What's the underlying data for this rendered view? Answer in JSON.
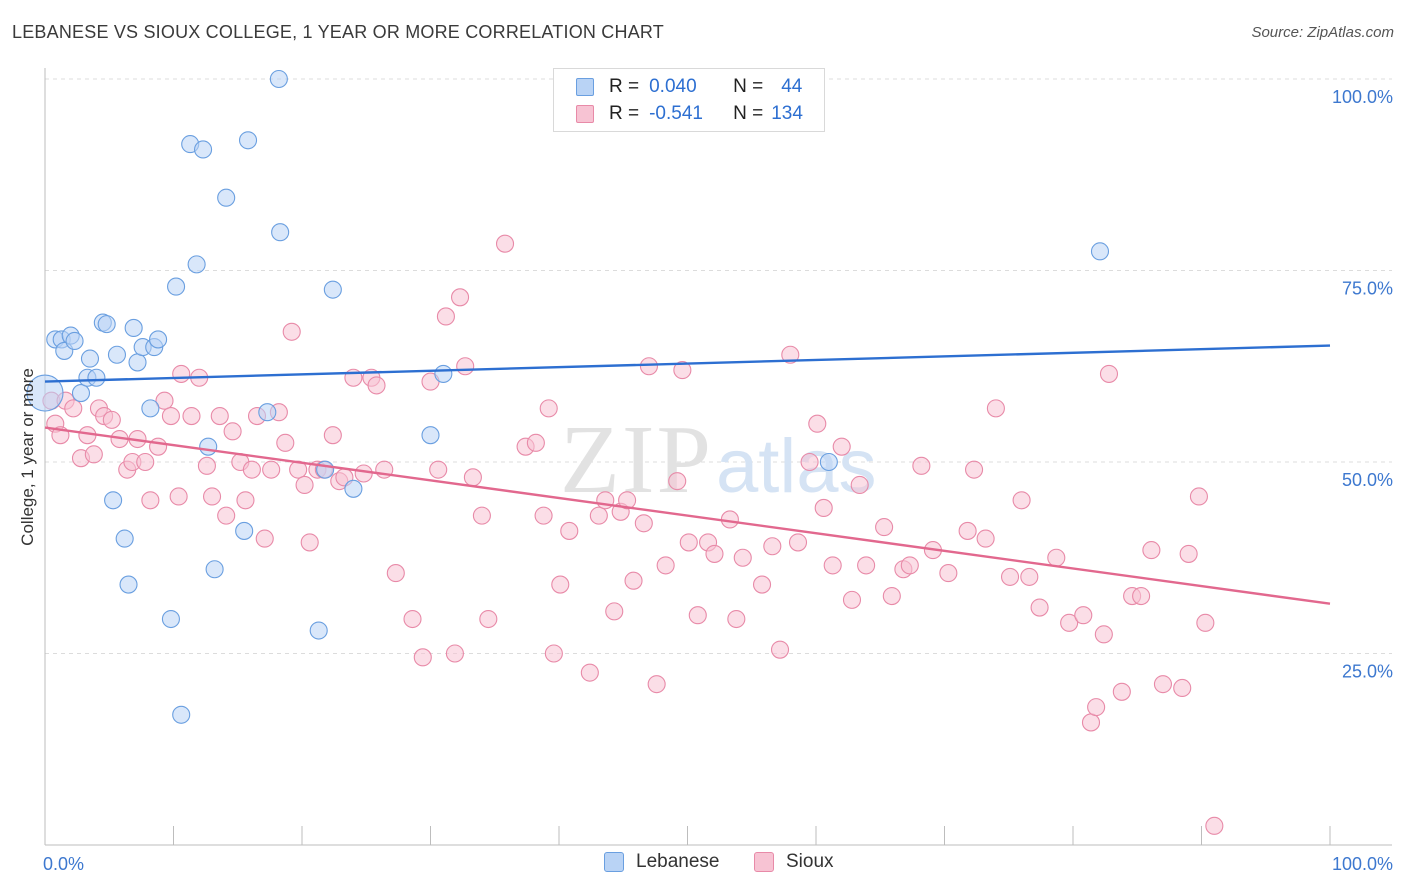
{
  "title": "LEBANESE VS SIOUX COLLEGE, 1 YEAR OR MORE CORRELATION CHART",
  "source": "Source: ZipAtlas.com",
  "watermark": {
    "zip": "ZIP",
    "atlas": "atlas"
  },
  "colors": {
    "blue": "#2d6fd1",
    "blue_fill": "#b9d3f5",
    "blue_stroke": "#6a9fe0",
    "pink": "#e2688e",
    "pink_fill": "#f7c3d3",
    "pink_stroke": "#e88aa8",
    "axis_label": "#3d78cf",
    "grid": "#dcdcdc"
  },
  "legend": {
    "rows": [
      {
        "r_label": "R = ",
        "r_value": "0.040",
        "n_label": "N = ",
        "n_value": "44"
      },
      {
        "r_label": "R = ",
        "r_value": "-0.541",
        "n_label": "N = ",
        "n_value": "134"
      }
    ]
  },
  "bottom_legend": {
    "lebanese": "Lebanese",
    "sioux": "Sioux"
  },
  "chart_data": {
    "type": "scatter",
    "title": "LEBANESE VS SIOUX COLLEGE, 1 YEAR OR MORE CORRELATION CHART",
    "xlabel": "",
    "ylabel": "College, 1 year or more",
    "xlim": [
      0,
      100
    ],
    "ylim": [
      0,
      100
    ],
    "x_tick_labels": {
      "left": "0.0%",
      "right": "100.0%"
    },
    "y_ticks": [
      {
        "value": 100,
        "label": "100.0%"
      },
      {
        "value": 75,
        "label": "75.0%"
      },
      {
        "value": 50,
        "label": "50.0%"
      },
      {
        "value": 25,
        "label": "25.0%"
      }
    ],
    "grid": true,
    "series": [
      {
        "name": "Lebanese",
        "r": 0.04,
        "n": 44,
        "trend": {
          "x": [
            0,
            100
          ],
          "y": [
            60.5,
            65.2
          ]
        },
        "points": [
          [
            0.0,
            59.0
          ],
          [
            0.8,
            66.0
          ],
          [
            1.3,
            66.0
          ],
          [
            1.5,
            64.5
          ],
          [
            2.0,
            66.5
          ],
          [
            2.3,
            65.8
          ],
          [
            2.8,
            59.0
          ],
          [
            3.3,
            61.0
          ],
          [
            3.5,
            63.5
          ],
          [
            4.0,
            61.0
          ],
          [
            4.5,
            68.2
          ],
          [
            4.8,
            68.0
          ],
          [
            5.3,
            45.0
          ],
          [
            5.6,
            64.0
          ],
          [
            6.2,
            40.0
          ],
          [
            6.5,
            34.0
          ],
          [
            6.9,
            67.5
          ],
          [
            7.2,
            63.0
          ],
          [
            7.6,
            65.0
          ],
          [
            8.2,
            57.0
          ],
          [
            8.5,
            65.0
          ],
          [
            8.8,
            66.0
          ],
          [
            9.8,
            29.5
          ],
          [
            10.2,
            72.9
          ],
          [
            10.6,
            17.0
          ],
          [
            11.3,
            91.5
          ],
          [
            11.8,
            75.8
          ],
          [
            12.3,
            90.8
          ],
          [
            12.7,
            52.0
          ],
          [
            13.2,
            36.0
          ],
          [
            14.1,
            84.5
          ],
          [
            15.5,
            41.0
          ],
          [
            15.8,
            92.0
          ],
          [
            17.3,
            56.5
          ],
          [
            18.2,
            100.0
          ],
          [
            18.3,
            80.0
          ],
          [
            21.3,
            28.0
          ],
          [
            21.8,
            49.0
          ],
          [
            22.4,
            72.5
          ],
          [
            24.0,
            46.5
          ],
          [
            30.0,
            53.5
          ],
          [
            31.0,
            61.5
          ],
          [
            61.0,
            50.0
          ],
          [
            82.1,
            77.5
          ]
        ]
      },
      {
        "name": "Sioux",
        "r": -0.541,
        "n": 134,
        "trend": {
          "x": [
            0,
            100
          ],
          "y": [
            54.5,
            31.5
          ]
        },
        "points": [
          [
            0.5,
            58.0
          ],
          [
            0.8,
            55.0
          ],
          [
            1.2,
            53.5
          ],
          [
            1.6,
            58.0
          ],
          [
            2.2,
            57.0
          ],
          [
            2.8,
            50.5
          ],
          [
            3.3,
            53.5
          ],
          [
            3.8,
            51.0
          ],
          [
            4.2,
            57.0
          ],
          [
            4.6,
            56.0
          ],
          [
            5.2,
            55.5
          ],
          [
            5.8,
            53.0
          ],
          [
            6.4,
            49.0
          ],
          [
            6.8,
            50.0
          ],
          [
            7.2,
            53.0
          ],
          [
            7.8,
            50.0
          ],
          [
            8.2,
            45.0
          ],
          [
            8.8,
            52.0
          ],
          [
            9.3,
            58.0
          ],
          [
            9.8,
            56.0
          ],
          [
            10.4,
            45.5
          ],
          [
            10.6,
            61.5
          ],
          [
            11.4,
            56.0
          ],
          [
            12.0,
            61.0
          ],
          [
            12.6,
            49.5
          ],
          [
            13.0,
            45.5
          ],
          [
            13.6,
            56.0
          ],
          [
            14.1,
            43.0
          ],
          [
            14.6,
            54.0
          ],
          [
            15.2,
            50.0
          ],
          [
            15.6,
            45.0
          ],
          [
            16.1,
            49.0
          ],
          [
            16.5,
            56.0
          ],
          [
            17.1,
            40.0
          ],
          [
            17.6,
            49.0
          ],
          [
            18.2,
            56.5
          ],
          [
            18.7,
            52.5
          ],
          [
            19.2,
            67.0
          ],
          [
            19.7,
            49.0
          ],
          [
            20.2,
            47.0
          ],
          [
            20.6,
            39.5
          ],
          [
            21.2,
            49.0
          ],
          [
            21.7,
            49.0
          ],
          [
            22.4,
            53.5
          ],
          [
            22.9,
            47.5
          ],
          [
            23.3,
            48.0
          ],
          [
            24.0,
            61.0
          ],
          [
            24.8,
            48.5
          ],
          [
            25.4,
            61.0
          ],
          [
            25.8,
            60.0
          ],
          [
            26.4,
            49.0
          ],
          [
            27.3,
            35.5
          ],
          [
            28.6,
            29.5
          ],
          [
            29.4,
            24.5
          ],
          [
            30.0,
            60.5
          ],
          [
            30.6,
            49.0
          ],
          [
            31.2,
            69.0
          ],
          [
            31.9,
            25.0
          ],
          [
            32.3,
            71.5
          ],
          [
            32.7,
            62.5
          ],
          [
            33.3,
            48.0
          ],
          [
            34.0,
            43.0
          ],
          [
            34.5,
            29.5
          ],
          [
            35.8,
            78.5
          ],
          [
            37.4,
            52.0
          ],
          [
            38.2,
            52.5
          ],
          [
            38.8,
            43.0
          ],
          [
            39.2,
            57.0
          ],
          [
            39.6,
            25.0
          ],
          [
            40.1,
            34.0
          ],
          [
            40.8,
            41.0
          ],
          [
            42.4,
            22.5
          ],
          [
            43.1,
            43.0
          ],
          [
            43.6,
            45.0
          ],
          [
            44.3,
            30.5
          ],
          [
            44.8,
            43.5
          ],
          [
            45.3,
            45.0
          ],
          [
            45.8,
            34.5
          ],
          [
            46.6,
            42.0
          ],
          [
            47.0,
            62.5
          ],
          [
            47.6,
            21.0
          ],
          [
            48.3,
            36.5
          ],
          [
            49.2,
            47.5
          ],
          [
            49.6,
            62.0
          ],
          [
            50.1,
            39.5
          ],
          [
            50.8,
            30.0
          ],
          [
            51.6,
            39.5
          ],
          [
            52.1,
            38.0
          ],
          [
            53.3,
            42.5
          ],
          [
            53.8,
            29.5
          ],
          [
            54.3,
            37.5
          ],
          [
            55.8,
            34.0
          ],
          [
            56.6,
            39.0
          ],
          [
            57.2,
            25.5
          ],
          [
            58.0,
            64.0
          ],
          [
            58.6,
            39.5
          ],
          [
            59.5,
            50.0
          ],
          [
            60.1,
            55.0
          ],
          [
            60.6,
            44.0
          ],
          [
            61.3,
            36.5
          ],
          [
            62.0,
            52.0
          ],
          [
            62.8,
            32.0
          ],
          [
            63.4,
            47.0
          ],
          [
            63.9,
            36.5
          ],
          [
            65.3,
            41.5
          ],
          [
            65.9,
            32.5
          ],
          [
            66.8,
            36.0
          ],
          [
            67.3,
            36.5
          ],
          [
            68.2,
            49.5
          ],
          [
            69.1,
            38.5
          ],
          [
            70.3,
            35.5
          ],
          [
            71.8,
            41.0
          ],
          [
            72.3,
            49.0
          ],
          [
            73.2,
            40.0
          ],
          [
            74.0,
            57.0
          ],
          [
            75.1,
            35.0
          ],
          [
            76.0,
            45.0
          ],
          [
            76.6,
            35.0
          ],
          [
            77.4,
            31.0
          ],
          [
            78.7,
            37.5
          ],
          [
            79.7,
            29.0
          ],
          [
            80.8,
            30.0
          ],
          [
            81.4,
            16.0
          ],
          [
            81.8,
            18.0
          ],
          [
            82.4,
            27.5
          ],
          [
            82.8,
            61.5
          ],
          [
            83.8,
            20.0
          ],
          [
            84.6,
            32.5
          ],
          [
            85.3,
            32.5
          ],
          [
            86.1,
            38.5
          ],
          [
            87.0,
            21.0
          ],
          [
            88.5,
            20.5
          ],
          [
            89.0,
            38.0
          ],
          [
            89.8,
            45.5
          ],
          [
            90.3,
            29.0
          ],
          [
            91.0,
            2.5
          ]
        ]
      }
    ]
  }
}
